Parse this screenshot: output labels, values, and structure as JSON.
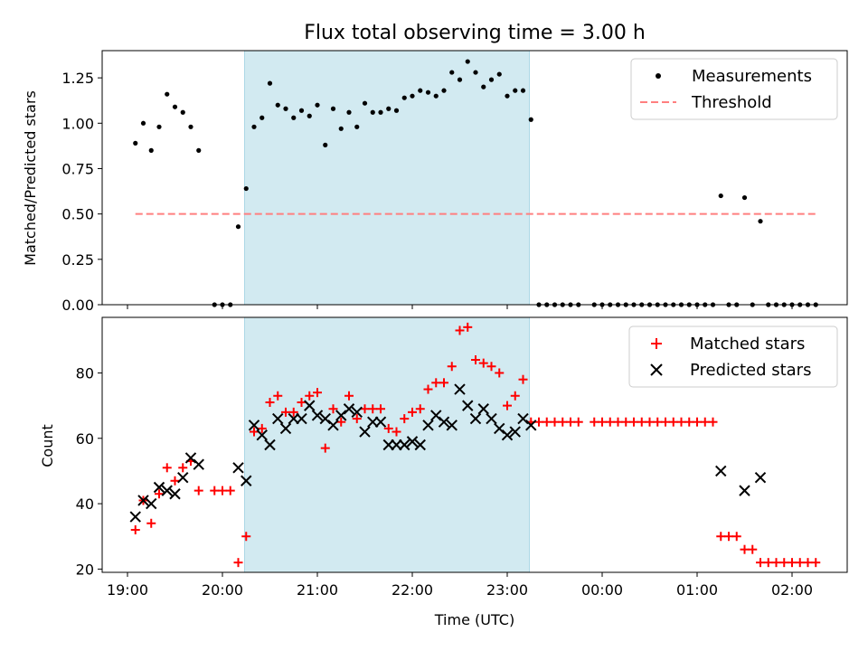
{
  "chart_data": [
    {
      "type": "scatter",
      "title": "Flux total observing time = 3.00 h",
      "xlabel": "",
      "ylabel": "Matched/Predicted stars",
      "ylim": [
        0,
        1.4
      ],
      "yticks": [
        "0.00",
        "0.25",
        "0.50",
        "0.75",
        "1.00",
        "1.25"
      ],
      "highlight_span": {
        "from": "20:14",
        "to": "23:14",
        "color": "#add8e6"
      },
      "legend": "top-right",
      "series": [
        {
          "name": "Measurements",
          "marker": "dot",
          "color": "#000000",
          "points": [
            [
              "19:05",
              0.89
            ],
            [
              "19:10",
              1.0
            ],
            [
              "19:15",
              0.85
            ],
            [
              "19:20",
              0.98
            ],
            [
              "19:25",
              1.16
            ],
            [
              "19:30",
              1.09
            ],
            [
              "19:35",
              1.06
            ],
            [
              "19:40",
              0.98
            ],
            [
              "19:45",
              0.85
            ],
            [
              "19:55",
              0.0
            ],
            [
              "20:00",
              0.0
            ],
            [
              "20:05",
              0.0
            ],
            [
              "20:10",
              0.43
            ],
            [
              "20:15",
              0.64
            ],
            [
              "20:20",
              0.98
            ],
            [
              "20:25",
              1.03
            ],
            [
              "20:30",
              1.22
            ],
            [
              "20:35",
              1.1
            ],
            [
              "20:40",
              1.08
            ],
            [
              "20:45",
              1.03
            ],
            [
              "20:50",
              1.07
            ],
            [
              "20:55",
              1.04
            ],
            [
              "21:00",
              1.1
            ],
            [
              "21:05",
              0.88
            ],
            [
              "21:10",
              1.08
            ],
            [
              "21:15",
              0.97
            ],
            [
              "21:20",
              1.06
            ],
            [
              "21:25",
              0.98
            ],
            [
              "21:30",
              1.11
            ],
            [
              "21:35",
              1.06
            ],
            [
              "21:40",
              1.06
            ],
            [
              "21:45",
              1.08
            ],
            [
              "21:50",
              1.07
            ],
            [
              "21:55",
              1.14
            ],
            [
              "22:00",
              1.15
            ],
            [
              "22:05",
              1.18
            ],
            [
              "22:10",
              1.17
            ],
            [
              "22:15",
              1.15
            ],
            [
              "22:20",
              1.18
            ],
            [
              "22:25",
              1.28
            ],
            [
              "22:30",
              1.24
            ],
            [
              "22:35",
              1.34
            ],
            [
              "22:40",
              1.28
            ],
            [
              "22:45",
              1.2
            ],
            [
              "22:50",
              1.24
            ],
            [
              "22:55",
              1.27
            ],
            [
              "23:00",
              1.15
            ],
            [
              "23:05",
              1.18
            ],
            [
              "23:10",
              1.18
            ],
            [
              "23:15",
              1.02
            ],
            [
              "23:20",
              0.0
            ],
            [
              "23:25",
              0.0
            ],
            [
              "23:30",
              0.0
            ],
            [
              "23:35",
              0.0
            ],
            [
              "23:40",
              0.0
            ],
            [
              "23:45",
              0.0
            ],
            [
              "23:55",
              0.0
            ],
            [
              "00:00",
              0.0
            ],
            [
              "00:05",
              0.0
            ],
            [
              "00:10",
              0.0
            ],
            [
              "00:15",
              0.0
            ],
            [
              "00:20",
              0.0
            ],
            [
              "00:25",
              0.0
            ],
            [
              "00:30",
              0.0
            ],
            [
              "00:35",
              0.0
            ],
            [
              "00:40",
              0.0
            ],
            [
              "00:45",
              0.0
            ],
            [
              "00:50",
              0.0
            ],
            [
              "00:55",
              0.0
            ],
            [
              "01:00",
              0.0
            ],
            [
              "01:05",
              0.0
            ],
            [
              "01:10",
              0.0
            ],
            [
              "01:15",
              0.6
            ],
            [
              "01:20",
              0.0
            ],
            [
              "01:25",
              0.0
            ],
            [
              "01:30",
              0.59
            ],
            [
              "01:35",
              0.0
            ],
            [
              "01:40",
              0.46
            ],
            [
              "01:45",
              0.0
            ],
            [
              "01:50",
              0.0
            ],
            [
              "01:55",
              0.0
            ],
            [
              "02:00",
              0.0
            ],
            [
              "02:05",
              0.0
            ],
            [
              "02:10",
              0.0
            ],
            [
              "02:15",
              0.0
            ]
          ]
        },
        {
          "name": "Threshold",
          "marker": "dashed-line",
          "color": "#ff7f7f",
          "points": [
            [
              "19:05",
              0.5
            ],
            [
              "02:15",
              0.5
            ]
          ]
        }
      ]
    },
    {
      "type": "scatter",
      "title": "",
      "xlabel": "Time (UTC)",
      "ylabel": "Count",
      "ylim": [
        19,
        97
      ],
      "yticks": [
        "20",
        "40",
        "60",
        "80"
      ],
      "xticks": [
        "19:00",
        "20:00",
        "21:00",
        "22:00",
        "23:00",
        "00:00",
        "01:00",
        "02:00"
      ],
      "highlight_span": {
        "from": "20:14",
        "to": "23:14",
        "color": "#add8e6"
      },
      "legend": "top-right",
      "series": [
        {
          "name": "Matched stars",
          "marker": "plus",
          "color": "#ff0000",
          "points": [
            [
              "19:05",
              32
            ],
            [
              "19:10",
              41
            ],
            [
              "19:15",
              34
            ],
            [
              "19:20",
              43
            ],
            [
              "19:25",
              51
            ],
            [
              "19:30",
              47
            ],
            [
              "19:35",
              51
            ],
            [
              "19:40",
              53
            ],
            [
              "19:45",
              44
            ],
            [
              "19:55",
              44
            ],
            [
              "20:00",
              44
            ],
            [
              "20:05",
              44
            ],
            [
              "20:10",
              22
            ],
            [
              "20:15",
              30
            ],
            [
              "20:20",
              62
            ],
            [
              "20:25",
              63
            ],
            [
              "20:30",
              71
            ],
            [
              "20:35",
              73
            ],
            [
              "20:40",
              68
            ],
            [
              "20:45",
              68
            ],
            [
              "20:50",
              71
            ],
            [
              "20:55",
              73
            ],
            [
              "21:00",
              74
            ],
            [
              "21:05",
              57
            ],
            [
              "21:10",
              69
            ],
            [
              "21:15",
              65
            ],
            [
              "21:20",
              73
            ],
            [
              "21:25",
              66
            ],
            [
              "21:30",
              69
            ],
            [
              "21:35",
              69
            ],
            [
              "21:40",
              69
            ],
            [
              "21:45",
              63
            ],
            [
              "21:50",
              62
            ],
            [
              "21:55",
              66
            ],
            [
              "22:00",
              68
            ],
            [
              "22:05",
              69
            ],
            [
              "22:10",
              75
            ],
            [
              "22:15",
              77
            ],
            [
              "22:20",
              77
            ],
            [
              "22:25",
              82
            ],
            [
              "22:30",
              93
            ],
            [
              "22:35",
              94
            ],
            [
              "22:40",
              84
            ],
            [
              "22:45",
              83
            ],
            [
              "22:50",
              82
            ],
            [
              "22:55",
              80
            ],
            [
              "23:00",
              70
            ],
            [
              "23:05",
              73
            ],
            [
              "23:10",
              78
            ],
            [
              "23:15",
              65
            ],
            [
              "23:20",
              65
            ],
            [
              "23:25",
              65
            ],
            [
              "23:30",
              65
            ],
            [
              "23:35",
              65
            ],
            [
              "23:40",
              65
            ],
            [
              "23:45",
              65
            ],
            [
              "23:55",
              65
            ],
            [
              "00:00",
              65
            ],
            [
              "00:05",
              65
            ],
            [
              "00:10",
              65
            ],
            [
              "00:15",
              65
            ],
            [
              "00:20",
              65
            ],
            [
              "00:25",
              65
            ],
            [
              "00:30",
              65
            ],
            [
              "00:35",
              65
            ],
            [
              "00:40",
              65
            ],
            [
              "00:45",
              65
            ],
            [
              "00:50",
              65
            ],
            [
              "00:55",
              65
            ],
            [
              "01:00",
              65
            ],
            [
              "01:05",
              65
            ],
            [
              "01:10",
              65
            ],
            [
              "01:15",
              30
            ],
            [
              "01:20",
              30
            ],
            [
              "01:25",
              30
            ],
            [
              "01:30",
              26
            ],
            [
              "01:35",
              26
            ],
            [
              "01:40",
              22
            ],
            [
              "01:45",
              22
            ],
            [
              "01:50",
              22
            ],
            [
              "01:55",
              22
            ],
            [
              "02:00",
              22
            ],
            [
              "02:05",
              22
            ],
            [
              "02:10",
              22
            ],
            [
              "02:15",
              22
            ]
          ]
        },
        {
          "name": "Predicted stars",
          "marker": "x",
          "color": "#000000",
          "points": [
            [
              "19:05",
              36
            ],
            [
              "19:10",
              41
            ],
            [
              "19:15",
              40
            ],
            [
              "19:20",
              45
            ],
            [
              "19:25",
              44
            ],
            [
              "19:30",
              43
            ],
            [
              "19:35",
              48
            ],
            [
              "19:40",
              54
            ],
            [
              "19:45",
              52
            ],
            [
              "20:10",
              51
            ],
            [
              "20:15",
              47
            ],
            [
              "20:20",
              64
            ],
            [
              "20:25",
              61
            ],
            [
              "20:30",
              58
            ],
            [
              "20:35",
              66
            ],
            [
              "20:40",
              63
            ],
            [
              "20:45",
              66
            ],
            [
              "20:50",
              66
            ],
            [
              "20:55",
              70
            ],
            [
              "21:00",
              67
            ],
            [
              "21:05",
              66
            ],
            [
              "21:10",
              64
            ],
            [
              "21:15",
              67
            ],
            [
              "21:20",
              69
            ],
            [
              "21:25",
              68
            ],
            [
              "21:30",
              62
            ],
            [
              "21:35",
              65
            ],
            [
              "21:40",
              65
            ],
            [
              "21:45",
              58
            ],
            [
              "21:50",
              58
            ],
            [
              "21:55",
              58
            ],
            [
              "22:00",
              59
            ],
            [
              "22:05",
              58
            ],
            [
              "22:10",
              64
            ],
            [
              "22:15",
              67
            ],
            [
              "22:20",
              65
            ],
            [
              "22:25",
              64
            ],
            [
              "22:30",
              75
            ],
            [
              "22:35",
              70
            ],
            [
              "22:40",
              66
            ],
            [
              "22:45",
              69
            ],
            [
              "22:50",
              66
            ],
            [
              "22:55",
              63
            ],
            [
              "23:00",
              61
            ],
            [
              "23:05",
              62
            ],
            [
              "23:10",
              66
            ],
            [
              "23:15",
              64
            ],
            [
              "01:15",
              50
            ],
            [
              "01:30",
              44
            ],
            [
              "01:40",
              48
            ]
          ]
        }
      ]
    }
  ]
}
